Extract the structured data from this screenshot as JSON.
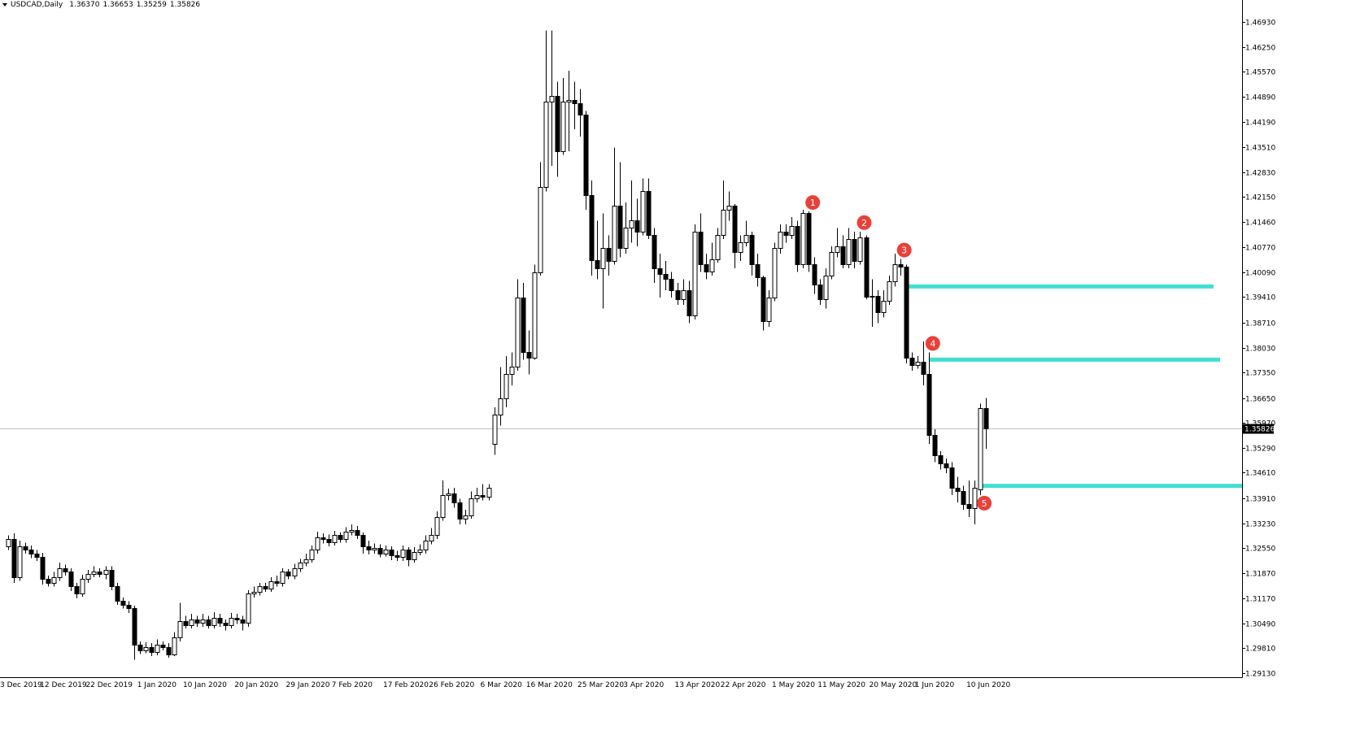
{
  "chart_data": {
    "type": "candlestick",
    "title": "USDCAD,Daily",
    "header_values": [
      "1.36370",
      "1.36653",
      "1.35259",
      "1.35826"
    ],
    "bull_color": "#ffffff",
    "bear_color": "#000000",
    "outline_color": "#000000",
    "grid": false,
    "ylim": [
      1.2902,
      1.4753
    ],
    "yticks": [
      {
        "value": 1.4693,
        "label": "1.46930"
      },
      {
        "value": 1.4625,
        "label": "1.46250"
      },
      {
        "value": 1.4557,
        "label": "1.45570"
      },
      {
        "value": 1.4489,
        "label": "1.44890"
      },
      {
        "value": 1.4419,
        "label": "1.44190"
      },
      {
        "value": 1.4351,
        "label": "1.43510"
      },
      {
        "value": 1.4283,
        "label": "1.42830"
      },
      {
        "value": 1.4215,
        "label": "1.42150"
      },
      {
        "value": 1.4146,
        "label": "1.41460"
      },
      {
        "value": 1.4077,
        "label": "1.40770"
      },
      {
        "value": 1.4009,
        "label": "1.40090"
      },
      {
        "value": 1.3941,
        "label": "1.39410"
      },
      {
        "value": 1.3871,
        "label": "1.38710"
      },
      {
        "value": 1.3803,
        "label": "1.38030"
      },
      {
        "value": 1.3735,
        "label": "1.37350"
      },
      {
        "value": 1.3665,
        "label": "1.36650"
      },
      {
        "value": 1.3597,
        "label": "1.35970"
      },
      {
        "value": 1.3529,
        "label": "1.35290"
      },
      {
        "value": 1.3461,
        "label": "1.34610"
      },
      {
        "value": 1.3391,
        "label": "1.33910"
      },
      {
        "value": 1.3323,
        "label": "1.33230"
      },
      {
        "value": 1.3255,
        "label": "1.32550"
      },
      {
        "value": 1.3187,
        "label": "1.31870"
      },
      {
        "value": 1.3117,
        "label": "1.31170"
      },
      {
        "value": 1.3049,
        "label": "1.30490"
      },
      {
        "value": 1.2981,
        "label": "1.29810"
      },
      {
        "value": 1.2913,
        "label": "1.29130"
      }
    ],
    "current_price": {
      "value": 1.35826,
      "label": "1.35826",
      "color": "#c0c0c0"
    },
    "levels": [
      {
        "value": 1.397,
        "from": 157,
        "color": "#40e0d0"
      },
      {
        "value": 1.377,
        "from": 161,
        "color": "#40e0d0"
      },
      {
        "value": 1.3425,
        "from": 170,
        "color": "#40e0d0"
      }
    ],
    "markers": [
      {
        "label": "1",
        "bar": 140,
        "side": "above"
      },
      {
        "label": "2",
        "bar": 149,
        "side": "above"
      },
      {
        "label": "3",
        "bar": 156,
        "side": "above"
      },
      {
        "label": "4",
        "bar": 161,
        "side": "above"
      },
      {
        "label": "5",
        "bar": 170,
        "side": "below"
      }
    ],
    "marker_color": "#e8413a",
    "categories": [
      "3 Dec 2019",
      null,
      null,
      null,
      null,
      null,
      null,
      "12 Dec 2019",
      null,
      null,
      null,
      null,
      null,
      null,
      null,
      "22 Dec 2019",
      null,
      null,
      null,
      null,
      null,
      null,
      null,
      null,
      "1 Jan 2020",
      null,
      null,
      null,
      null,
      null,
      null,
      null,
      "10 Jan 2020",
      null,
      null,
      null,
      null,
      null,
      null,
      null,
      null,
      "20 Jan 2020",
      null,
      null,
      null,
      null,
      null,
      null,
      null,
      null,
      "29 Jan 2020",
      null,
      null,
      null,
      null,
      null,
      null,
      null,
      "7 Feb 2020",
      null,
      null,
      null,
      null,
      null,
      null,
      null,
      null,
      "17 Feb 2020",
      null,
      null,
      null,
      null,
      null,
      null,
      null,
      "26 Feb 2020",
      null,
      null,
      null,
      null,
      null,
      null,
      null,
      null,
      "6 Mar 2020",
      null,
      null,
      null,
      null,
      null,
      null,
      null,
      "16 Mar 2020",
      null,
      null,
      null,
      null,
      null,
      null,
      null,
      null,
      "25 Mar 2020",
      null,
      null,
      null,
      null,
      null,
      null,
      null,
      "3 Apr 2020",
      null,
      null,
      null,
      null,
      null,
      null,
      null,
      null,
      "13 Apr 2020",
      null,
      null,
      null,
      null,
      null,
      null,
      null,
      "22 Apr 2020",
      null,
      null,
      null,
      null,
      null,
      null,
      null,
      null,
      "1 May 2020",
      null,
      null,
      null,
      null,
      null,
      null,
      null,
      "11 May 2020",
      null,
      null,
      null,
      null,
      null,
      null,
      null,
      null,
      "20 May 2020",
      null,
      null,
      null,
      null,
      null,
      null,
      null,
      "1 Jun 2020",
      null,
      null,
      null,
      null,
      null,
      null,
      null,
      null,
      "10 Jun 2020",
      null,
      null
    ],
    "open": [
      1.326,
      1.328,
      1.3175,
      1.326,
      1.325,
      1.324,
      1.323,
      1.317,
      1.316,
      1.3175,
      1.32,
      1.319,
      1.315,
      1.313,
      1.317,
      1.3185,
      1.319,
      1.3185,
      1.3195,
      1.315,
      1.311,
      1.31,
      1.309,
      1.299,
      1.2975,
      1.2985,
      1.297,
      1.299,
      1.2985,
      1.2965,
      1.301,
      1.3055,
      1.3045,
      1.306,
      1.305,
      1.306,
      1.3045,
      1.3065,
      1.305,
      1.3045,
      1.3065,
      1.306,
      1.305,
      1.313,
      1.3135,
      1.315,
      1.3145,
      1.3165,
      1.316,
      1.319,
      1.318,
      1.32,
      1.3215,
      1.3225,
      1.325,
      1.3285,
      1.328,
      1.327,
      1.329,
      1.328,
      1.33,
      1.3305,
      1.329,
      1.326,
      1.325,
      1.3255,
      1.324,
      1.325,
      1.3235,
      1.323,
      1.325,
      1.3225,
      1.3245,
      1.325,
      1.3275,
      1.329,
      1.334,
      1.34,
      1.3405,
      1.338,
      1.3335,
      1.3345,
      1.339,
      1.34,
      1.3395,
      1.354,
      1.362,
      1.3665,
      1.373,
      1.375,
      1.394,
      1.379,
      1.3775,
      1.4008,
      1.4242,
      1.4475,
      1.449,
      1.434,
      1.4475,
      1.448,
      1.447,
      1.444,
      1.422,
      1.4042,
      1.402,
      1.4075,
      1.404,
      1.419,
      1.4075,
      1.413,
      1.415,
      1.412,
      1.423,
      1.411,
      1.402,
      1.4005,
      1.399,
      1.396,
      1.3935,
      1.396,
      1.389,
      1.412,
      1.403,
      1.401,
      1.4045,
      1.411,
      1.418,
      1.419,
      1.4065,
      1.409,
      1.411,
      1.403,
      1.3995,
      1.3875,
      1.394,
      1.4075,
      1.412,
      1.411,
      1.4135,
      1.403,
      1.417,
      1.403,
      1.3975,
      1.3935,
      1.4,
      1.4065,
      1.408,
      1.403,
      1.41,
      1.404,
      1.4105,
      1.3942,
      1.3945,
      1.39,
      1.393,
      1.3985,
      1.403,
      1.4025,
      1.3775,
      1.3755,
      1.3765,
      1.373,
      1.3564,
      1.3508,
      1.3486,
      1.3475,
      1.342,
      1.341,
      1.3375,
      1.3364,
      1.3415,
      1.3637
    ],
    "high": [
      1.329,
      1.3295,
      1.3275,
      1.327,
      1.3262,
      1.325,
      1.3242,
      1.318,
      1.319,
      1.3215,
      1.321,
      1.32,
      1.316,
      1.3182,
      1.3195,
      1.3205,
      1.32,
      1.3205,
      1.3205,
      1.316,
      1.312,
      1.311,
      1.3098,
      1.3,
      1.2998,
      1.2995,
      1.3005,
      1.3,
      1.2995,
      1.3025,
      1.3105,
      1.307,
      1.3075,
      1.307,
      1.3075,
      1.307,
      1.308,
      1.3075,
      1.306,
      1.3078,
      1.3075,
      1.307,
      1.314,
      1.315,
      1.316,
      1.316,
      1.3175,
      1.318,
      1.32,
      1.3198,
      1.3212,
      1.3225,
      1.324,
      1.3262,
      1.33,
      1.3295,
      1.3292,
      1.3302,
      1.3298,
      1.3312,
      1.332,
      1.3315,
      1.3298,
      1.3275,
      1.3268,
      1.3265,
      1.3262,
      1.326,
      1.3248,
      1.3262,
      1.3258,
      1.3258,
      1.3265,
      1.329,
      1.331,
      1.3355,
      1.344,
      1.3418,
      1.342,
      1.339,
      1.336,
      1.341,
      1.342,
      1.343,
      1.343,
      1.364,
      1.375,
      1.378,
      1.379,
      1.399,
      1.398,
      1.385,
      1.403,
      1.431,
      1.467,
      1.467,
      1.453,
      1.454,
      1.456,
      1.453,
      1.451,
      1.445,
      1.426,
      1.415,
      1.417,
      1.411,
      1.435,
      1.431,
      1.42,
      1.426,
      1.421,
      1.4265,
      1.4265,
      1.413,
      1.406,
      1.404,
      1.401,
      1.398,
      1.399,
      1.3985,
      1.414,
      1.417,
      1.406,
      1.409,
      1.413,
      1.426,
      1.423,
      1.4195,
      1.411,
      1.415,
      1.412,
      1.406,
      1.4,
      1.396,
      1.409,
      1.414,
      1.414,
      1.416,
      1.415,
      1.418,
      1.4175,
      1.405,
      1.399,
      1.402,
      1.408,
      1.413,
      1.411,
      1.413,
      1.412,
      1.412,
      1.411,
      1.399,
      1.396,
      1.396,
      1.4,
      1.406,
      1.4045,
      1.403,
      1.379,
      1.378,
      1.382,
      1.379,
      1.358,
      1.352,
      1.35,
      1.349,
      1.345,
      1.3425,
      1.344,
      1.344,
      1.365,
      1.36653
    ],
    "low": [
      1.325,
      1.316,
      1.3165,
      1.324,
      1.3228,
      1.322,
      1.3155,
      1.315,
      1.315,
      1.3165,
      1.318,
      1.3138,
      1.3118,
      1.3122,
      1.316,
      1.3175,
      1.3175,
      1.317,
      1.314,
      1.31,
      1.309,
      1.3078,
      1.295,
      1.2965,
      1.2968,
      1.296,
      1.2962,
      1.2975,
      1.2955,
      1.296,
      1.3,
      1.3035,
      1.3035,
      1.304,
      1.304,
      1.3035,
      1.3035,
      1.304,
      1.303,
      1.3035,
      1.3048,
      1.303,
      1.304,
      1.312,
      1.3125,
      1.3135,
      1.3135,
      1.315,
      1.315,
      1.317,
      1.317,
      1.319,
      1.3205,
      1.3215,
      1.324,
      1.3268,
      1.326,
      1.3262,
      1.327,
      1.327,
      1.329,
      1.328,
      1.324,
      1.3238,
      1.324,
      1.323,
      1.3232,
      1.3222,
      1.322,
      1.322,
      1.3205,
      1.3215,
      1.3235,
      1.324,
      1.3265,
      1.328,
      1.333,
      1.3385,
      1.3365,
      1.332,
      1.332,
      1.3335,
      1.338,
      1.3385,
      1.3385,
      1.351,
      1.359,
      1.364,
      1.37,
      1.374,
      1.377,
      1.373,
      1.377,
      1.4,
      1.423,
      1.43,
      1.427,
      1.433,
      1.434,
      1.44,
      1.438,
      1.418,
      1.4,
      1.399,
      1.391,
      1.4,
      1.403,
      1.405,
      1.406,
      1.409,
      1.408,
      1.411,
      1.41,
      1.398,
      1.394,
      1.396,
      1.394,
      1.392,
      1.392,
      1.387,
      1.388,
      1.401,
      1.399,
      1.4,
      1.4035,
      1.41,
      1.415,
      1.402,
      1.404,
      1.408,
      1.4,
      1.397,
      1.385,
      1.386,
      1.393,
      1.406,
      1.409,
      1.41,
      1.401,
      1.402,
      1.401,
      1.395,
      1.392,
      1.391,
      1.399,
      1.405,
      1.402,
      1.402,
      1.402,
      1.403,
      1.3935,
      1.386,
      1.387,
      1.3885,
      1.392,
      1.397,
      1.4,
      1.376,
      1.374,
      1.3745,
      1.37,
      1.354,
      1.349,
      1.347,
      1.346,
      1.34,
      1.338,
      1.336,
      1.334,
      1.332,
      1.34,
      1.35259
    ],
    "close": [
      1.328,
      1.3175,
      1.326,
      1.325,
      1.324,
      1.323,
      1.317,
      1.316,
      1.3175,
      1.32,
      1.319,
      1.315,
      1.313,
      1.317,
      1.3185,
      1.319,
      1.3185,
      1.3195,
      1.315,
      1.311,
      1.31,
      1.309,
      1.299,
      1.2975,
      1.2985,
      1.297,
      1.299,
      1.2985,
      1.2965,
      1.301,
      1.3055,
      1.3045,
      1.306,
      1.305,
      1.306,
      1.3045,
      1.3065,
      1.305,
      1.3045,
      1.3065,
      1.306,
      1.305,
      1.313,
      1.3135,
      1.315,
      1.3145,
      1.3165,
      1.316,
      1.319,
      1.318,
      1.32,
      1.3215,
      1.3225,
      1.325,
      1.3285,
      1.328,
      1.327,
      1.329,
      1.328,
      1.33,
      1.3305,
      1.329,
      1.326,
      1.325,
      1.3255,
      1.324,
      1.325,
      1.3235,
      1.323,
      1.325,
      1.3225,
      1.3245,
      1.325,
      1.3275,
      1.329,
      1.334,
      1.34,
      1.3405,
      1.338,
      1.3335,
      1.3345,
      1.339,
      1.34,
      1.3395,
      1.342,
      1.362,
      1.3665,
      1.373,
      1.375,
      1.394,
      1.379,
      1.3775,
      1.4008,
      1.4242,
      1.4475,
      1.449,
      1.434,
      1.4475,
      1.448,
      1.447,
      1.444,
      1.422,
      1.4042,
      1.402,
      1.4075,
      1.404,
      1.419,
      1.4075,
      1.413,
      1.415,
      1.412,
      1.423,
      1.411,
      1.402,
      1.4005,
      1.399,
      1.396,
      1.3935,
      1.396,
      1.389,
      1.412,
      1.403,
      1.401,
      1.4045,
      1.411,
      1.418,
      1.419,
      1.4065,
      1.409,
      1.411,
      1.403,
      1.3995,
      1.3875,
      1.394,
      1.4075,
      1.412,
      1.411,
      1.4135,
      1.403,
      1.417,
      1.403,
      1.3975,
      1.3935,
      1.4,
      1.4065,
      1.408,
      1.403,
      1.41,
      1.404,
      1.4105,
      1.3942,
      1.3945,
      1.39,
      1.393,
      1.3985,
      1.403,
      1.4025,
      1.3775,
      1.3755,
      1.3765,
      1.373,
      1.3564,
      1.3508,
      1.3486,
      1.3475,
      1.342,
      1.341,
      1.3375,
      1.3364,
      1.342,
      1.3637,
      1.35826
    ]
  }
}
